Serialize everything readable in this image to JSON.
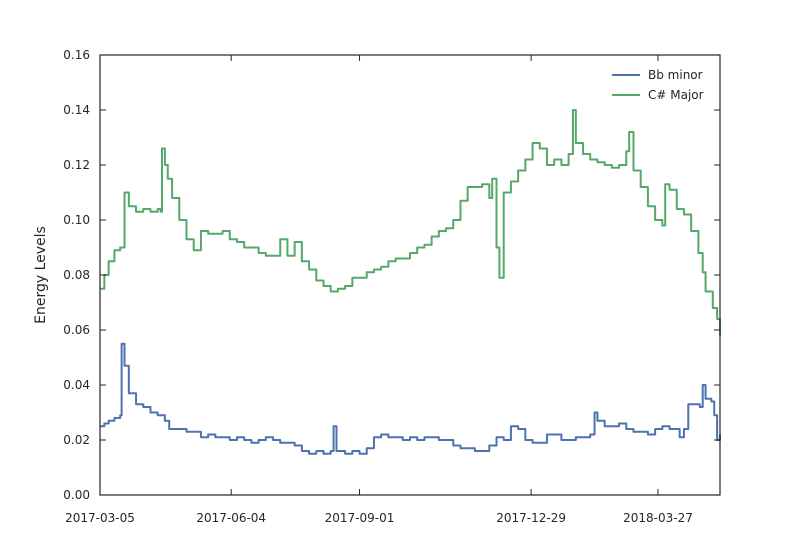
{
  "chart_data": {
    "type": "line",
    "title": "",
    "xlabel": "",
    "ylabel": "Energy Levels",
    "x_tick_labels": [
      "2017-03-05",
      "2017-06-04",
      "2017-09-01",
      "2017-12-29",
      "2018-03-27"
    ],
    "x_tick_days": [
      0,
      91,
      180,
      299,
      387
    ],
    "x_range_days": [
      0,
      430
    ],
    "x_end_date": "2018-05-09",
    "y_ticks": [
      "0.00",
      "0.02",
      "0.04",
      "0.06",
      "0.08",
      "0.10",
      "0.12",
      "0.14",
      "0.16"
    ],
    "ylim": [
      0,
      0.16
    ],
    "grid": false,
    "legend_position": "top-right",
    "series": [
      {
        "name": "Bb minor",
        "color": "#4c72b0",
        "points": [
          [
            0,
            0.025
          ],
          [
            3,
            0.026
          ],
          [
            6,
            0.027
          ],
          [
            10,
            0.028
          ],
          [
            14,
            0.029
          ],
          [
            15,
            0.055
          ],
          [
            17,
            0.047
          ],
          [
            20,
            0.037
          ],
          [
            25,
            0.033
          ],
          [
            30,
            0.032
          ],
          [
            35,
            0.03
          ],
          [
            40,
            0.029
          ],
          [
            45,
            0.027
          ],
          [
            48,
            0.024
          ],
          [
            55,
            0.024
          ],
          [
            60,
            0.023
          ],
          [
            65,
            0.023
          ],
          [
            70,
            0.021
          ],
          [
            75,
            0.022
          ],
          [
            80,
            0.021
          ],
          [
            85,
            0.021
          ],
          [
            90,
            0.02
          ],
          [
            95,
            0.021
          ],
          [
            100,
            0.02
          ],
          [
            105,
            0.019
          ],
          [
            110,
            0.02
          ],
          [
            115,
            0.021
          ],
          [
            120,
            0.02
          ],
          [
            125,
            0.019
          ],
          [
            130,
            0.019
          ],
          [
            135,
            0.018
          ],
          [
            140,
            0.016
          ],
          [
            145,
            0.015
          ],
          [
            150,
            0.016
          ],
          [
            155,
            0.015
          ],
          [
            160,
            0.016
          ],
          [
            162,
            0.025
          ],
          [
            164,
            0.016
          ],
          [
            170,
            0.015
          ],
          [
            175,
            0.016
          ],
          [
            180,
            0.015
          ],
          [
            185,
            0.017
          ],
          [
            190,
            0.021
          ],
          [
            195,
            0.022
          ],
          [
            200,
            0.021
          ],
          [
            205,
            0.021
          ],
          [
            210,
            0.02
          ],
          [
            215,
            0.021
          ],
          [
            220,
            0.02
          ],
          [
            225,
            0.021
          ],
          [
            230,
            0.021
          ],
          [
            235,
            0.02
          ],
          [
            240,
            0.02
          ],
          [
            245,
            0.018
          ],
          [
            250,
            0.017
          ],
          [
            255,
            0.017
          ],
          [
            260,
            0.016
          ],
          [
            265,
            0.016
          ],
          [
            270,
            0.018
          ],
          [
            275,
            0.021
          ],
          [
            280,
            0.02
          ],
          [
            285,
            0.025
          ],
          [
            290,
            0.024
          ],
          [
            295,
            0.02
          ],
          [
            300,
            0.019
          ],
          [
            305,
            0.019
          ],
          [
            310,
            0.022
          ],
          [
            315,
            0.022
          ],
          [
            320,
            0.02
          ],
          [
            325,
            0.02
          ],
          [
            330,
            0.021
          ],
          [
            335,
            0.021
          ],
          [
            340,
            0.022
          ],
          [
            343,
            0.03
          ],
          [
            345,
            0.027
          ],
          [
            350,
            0.025
          ],
          [
            355,
            0.025
          ],
          [
            360,
            0.026
          ],
          [
            365,
            0.024
          ],
          [
            370,
            0.023
          ],
          [
            375,
            0.023
          ],
          [
            380,
            0.022
          ],
          [
            383,
            0.022
          ],
          [
            385,
            0.024
          ],
          [
            390,
            0.025
          ],
          [
            395,
            0.024
          ],
          [
            398,
            0.024
          ],
          [
            402,
            0.021
          ],
          [
            405,
            0.024
          ],
          [
            408,
            0.033
          ],
          [
            412,
            0.033
          ],
          [
            416,
            0.032
          ],
          [
            418,
            0.04
          ],
          [
            420,
            0.035
          ],
          [
            424,
            0.034
          ],
          [
            426,
            0.029
          ],
          [
            428,
            0.02
          ],
          [
            430,
            0.022
          ]
        ]
      },
      {
        "name": "C# Major",
        "color": "#55a868",
        "points": [
          [
            0,
            0.075
          ],
          [
            3,
            0.08
          ],
          [
            6,
            0.085
          ],
          [
            10,
            0.089
          ],
          [
            14,
            0.09
          ],
          [
            17,
            0.11
          ],
          [
            20,
            0.105
          ],
          [
            25,
            0.103
          ],
          [
            30,
            0.104
          ],
          [
            35,
            0.103
          ],
          [
            40,
            0.104
          ],
          [
            42,
            0.103
          ],
          [
            43,
            0.126
          ],
          [
            45,
            0.12
          ],
          [
            47,
            0.115
          ],
          [
            50,
            0.108
          ],
          [
            55,
            0.1
          ],
          [
            60,
            0.093
          ],
          [
            65,
            0.089
          ],
          [
            70,
            0.096
          ],
          [
            75,
            0.095
          ],
          [
            80,
            0.095
          ],
          [
            85,
            0.096
          ],
          [
            90,
            0.093
          ],
          [
            95,
            0.092
          ],
          [
            100,
            0.09
          ],
          [
            105,
            0.09
          ],
          [
            110,
            0.088
          ],
          [
            115,
            0.087
          ],
          [
            120,
            0.087
          ],
          [
            125,
            0.093
          ],
          [
            130,
            0.087
          ],
          [
            135,
            0.092
          ],
          [
            140,
            0.085
          ],
          [
            145,
            0.082
          ],
          [
            150,
            0.078
          ],
          [
            155,
            0.076
          ],
          [
            160,
            0.074
          ],
          [
            165,
            0.075
          ],
          [
            170,
            0.076
          ],
          [
            175,
            0.079
          ],
          [
            180,
            0.079
          ],
          [
            185,
            0.081
          ],
          [
            190,
            0.082
          ],
          [
            195,
            0.083
          ],
          [
            200,
            0.085
          ],
          [
            205,
            0.086
          ],
          [
            210,
            0.086
          ],
          [
            215,
            0.088
          ],
          [
            220,
            0.09
          ],
          [
            225,
            0.091
          ],
          [
            230,
            0.094
          ],
          [
            235,
            0.096
          ],
          [
            240,
            0.097
          ],
          [
            245,
            0.1
          ],
          [
            250,
            0.107
          ],
          [
            255,
            0.112
          ],
          [
            260,
            0.112
          ],
          [
            265,
            0.113
          ],
          [
            270,
            0.108
          ],
          [
            272,
            0.115
          ],
          [
            275,
            0.09
          ],
          [
            277,
            0.079
          ],
          [
            280,
            0.11
          ],
          [
            285,
            0.114
          ],
          [
            290,
            0.118
          ],
          [
            295,
            0.122
          ],
          [
            300,
            0.128
          ],
          [
            305,
            0.126
          ],
          [
            310,
            0.12
          ],
          [
            315,
            0.122
          ],
          [
            320,
            0.12
          ],
          [
            325,
            0.124
          ],
          [
            328,
            0.14
          ],
          [
            330,
            0.128
          ],
          [
            335,
            0.124
          ],
          [
            340,
            0.122
          ],
          [
            345,
            0.121
          ],
          [
            350,
            0.12
          ],
          [
            355,
            0.119
          ],
          [
            360,
            0.12
          ],
          [
            365,
            0.125
          ],
          [
            367,
            0.132
          ],
          [
            370,
            0.118
          ],
          [
            375,
            0.112
          ],
          [
            380,
            0.105
          ],
          [
            385,
            0.1
          ],
          [
            390,
            0.098
          ],
          [
            392,
            0.113
          ],
          [
            395,
            0.111
          ],
          [
            400,
            0.104
          ],
          [
            405,
            0.102
          ],
          [
            410,
            0.096
          ],
          [
            415,
            0.088
          ],
          [
            418,
            0.081
          ],
          [
            420,
            0.074
          ],
          [
            425,
            0.068
          ],
          [
            428,
            0.064
          ],
          [
            430,
            0.058
          ]
        ]
      }
    ]
  }
}
